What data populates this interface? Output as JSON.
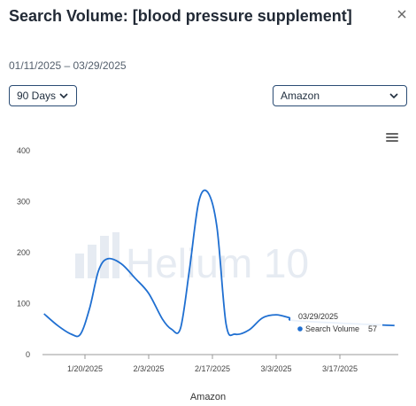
{
  "header": {
    "title": "Search Volume: [blood pressure supplement]",
    "date_range": "01/11/2025 – 03/29/2025"
  },
  "controls": {
    "period": "90 Days",
    "marketplace": "Amazon"
  },
  "watermark": "Helium 10",
  "icons": {
    "close": "close-icon",
    "menu": "hamburger-menu-icon",
    "period_chevron": "chevron-down-icon",
    "marketplace_chevron": "chevron-down-icon"
  },
  "tooltip": {
    "date": "03/29/2025",
    "series": "Search Volume",
    "value": "57"
  },
  "chart_data": {
    "type": "line",
    "title": "",
    "xlabel": "Amazon",
    "ylabel": "",
    "ylim": [
      0,
      400
    ],
    "yticks": [
      0,
      100,
      200,
      300,
      400
    ],
    "xticks": [
      "1/20/2025",
      "2/3/2025",
      "2/17/2025",
      "3/3/2025",
      "3/17/2025"
    ],
    "grid": false,
    "color": "#1f6fd1",
    "series": [
      {
        "name": "Search Volume",
        "points": [
          [
            "01/11/2025",
            80
          ],
          [
            "01/14/2025",
            57
          ],
          [
            "01/17/2025",
            40
          ],
          [
            "01/19/2025",
            40
          ],
          [
            "01/21/2025",
            90
          ],
          [
            "01/23/2025",
            165
          ],
          [
            "01/25/2025",
            188
          ],
          [
            "01/28/2025",
            178
          ],
          [
            "01/31/2025",
            150
          ],
          [
            "02/03/2025",
            120
          ],
          [
            "02/06/2025",
            70
          ],
          [
            "02/08/2025",
            50
          ],
          [
            "02/10/2025",
            52
          ],
          [
            "02/12/2025",
            170
          ],
          [
            "02/14/2025",
            300
          ],
          [
            "02/16/2025",
            318
          ],
          [
            "02/18/2025",
            250
          ],
          [
            "02/20/2025",
            60
          ],
          [
            "02/22/2025",
            40
          ],
          [
            "02/25/2025",
            48
          ],
          [
            "02/28/2025",
            72
          ],
          [
            "03/03/2025",
            78
          ],
          [
            "03/06/2025",
            72
          ],
          [
            "03/08/2025",
            66
          ],
          [
            "03/29/2025",
            57
          ]
        ]
      }
    ]
  }
}
